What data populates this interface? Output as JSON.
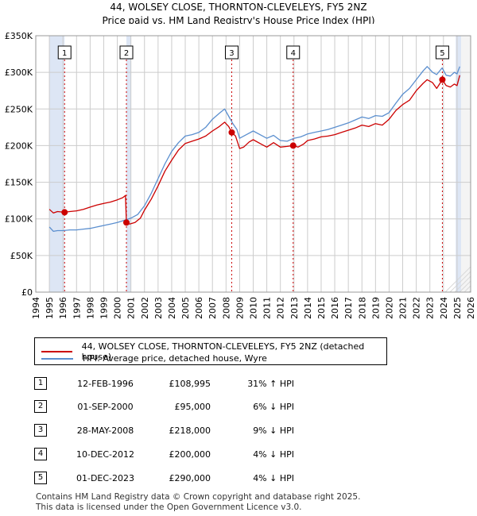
{
  "header": {
    "title": "44, WOLSEY CLOSE, THORNTON-CLEVELEYS, FY5 2NZ",
    "subtitle": "Price paid vs. HM Land Registry's House Price Index (HPI)"
  },
  "colors": {
    "property_line": "#cc0000",
    "hpi_line": "#5b8fcf",
    "shade": "#dde6f5",
    "grid": "#cccccc"
  },
  "chart_data": {
    "type": "line",
    "title": "44, WOLSEY CLOSE, THORNTON-CLEVELEYS, FY5 2NZ",
    "xlim": [
      1994,
      2026
    ],
    "ylim": [
      0,
      350000
    ],
    "x_ticks": [
      1994,
      1995,
      1996,
      1997,
      1998,
      1999,
      2000,
      2001,
      2002,
      2003,
      2004,
      2005,
      2006,
      2007,
      2008,
      2009,
      2010,
      2011,
      2012,
      2013,
      2014,
      2015,
      2016,
      2017,
      2018,
      2019,
      2020,
      2021,
      2022,
      2023,
      2024,
      2025,
      2026
    ],
    "y_ticks": [
      0,
      50000,
      100000,
      150000,
      200000,
      250000,
      300000,
      350000
    ],
    "y_tick_labels": [
      "£0",
      "£50K",
      "£100K",
      "£150K",
      "£200K",
      "£250K",
      "£300K",
      "£350K"
    ],
    "grid": true,
    "shaded_ranges": [
      [
        1995.0,
        1996.12
      ],
      [
        2000.67,
        2001.0
      ],
      [
        2024.9,
        2025.3
      ]
    ],
    "series": [
      {
        "name": "44, WOLSEY CLOSE, THORNTON-CLEVELEYS, FY5 2NZ (detached house)",
        "color": "#cc0000",
        "x": [
          1995.0,
          1995.3,
          1995.6,
          1996.12,
          1996.5,
          1997.0,
          1997.5,
          1998.0,
          1998.5,
          1999.0,
          1999.5,
          2000.0,
          2000.4,
          2000.6,
          2000.67,
          2000.9,
          2001.3,
          2001.7,
          2002.0,
          2002.5,
          2003.0,
          2003.5,
          2004.0,
          2004.5,
          2005.0,
          2005.5,
          2006.0,
          2006.5,
          2007.0,
          2007.5,
          2007.9,
          2008.2,
          2008.42,
          2008.7,
          2009.0,
          2009.3,
          2009.7,
          2010.0,
          2010.5,
          2011.0,
          2011.5,
          2012.0,
          2012.5,
          2012.94,
          2013.3,
          2013.7,
          2014.0,
          2014.5,
          2015.0,
          2015.5,
          2016.0,
          2016.5,
          2017.0,
          2017.5,
          2018.0,
          2018.5,
          2019.0,
          2019.5,
          2020.0,
          2020.5,
          2021.0,
          2021.5,
          2022.0,
          2022.5,
          2022.8,
          2023.2,
          2023.5,
          2023.92,
          2024.2,
          2024.5,
          2024.8,
          2025.0,
          2025.2
        ],
        "y": [
          113000,
          108000,
          110000,
          108995,
          110000,
          111000,
          113000,
          116000,
          119000,
          121000,
          123000,
          126000,
          129000,
          132000,
          95000,
          93000,
          95000,
          101000,
          112000,
          127000,
          145000,
          165000,
          180000,
          194000,
          203000,
          206000,
          209000,
          213000,
          220000,
          226000,
          232000,
          226000,
          218000,
          213000,
          196000,
          198000,
          205000,
          208000,
          203000,
          198000,
          204000,
          198000,
          199000,
          200000,
          198000,
          202000,
          207000,
          209000,
          212000,
          213000,
          215000,
          218000,
          221000,
          224000,
          228000,
          226000,
          230000,
          228000,
          236000,
          248000,
          256000,
          262000,
          275000,
          285000,
          290000,
          286000,
          278000,
          290000,
          282000,
          280000,
          284000,
          282000,
          296000
        ]
      },
      {
        "name": "HPI: Average price, detached house, Wyre",
        "color": "#5b8fcf",
        "x": [
          1995.0,
          1995.3,
          1995.6,
          1996.0,
          1996.5,
          1997.0,
          1997.5,
          1998.0,
          1998.5,
          1999.0,
          1999.5,
          2000.0,
          2000.5,
          2001.0,
          2001.5,
          2002.0,
          2002.5,
          2003.0,
          2003.5,
          2004.0,
          2004.5,
          2005.0,
          2005.5,
          2006.0,
          2006.5,
          2007.0,
          2007.5,
          2007.9,
          2008.2,
          2008.5,
          2008.8,
          2009.0,
          2009.5,
          2010.0,
          2010.5,
          2011.0,
          2011.5,
          2012.0,
          2012.5,
          2013.0,
          2013.5,
          2014.0,
          2014.5,
          2015.0,
          2015.5,
          2016.0,
          2016.5,
          2017.0,
          2017.5,
          2018.0,
          2018.5,
          2019.0,
          2019.5,
          2020.0,
          2020.5,
          2021.0,
          2021.5,
          2022.0,
          2022.5,
          2022.8,
          2023.2,
          2023.5,
          2023.9,
          2024.2,
          2024.5,
          2024.8,
          2025.0,
          2025.2
        ],
        "y": [
          89000,
          83000,
          84000,
          84000,
          85000,
          85000,
          86000,
          87000,
          89000,
          91000,
          93000,
          95000,
          98000,
          101000,
          106000,
          118000,
          135000,
          155000,
          175000,
          192000,
          204000,
          213000,
          215000,
          218000,
          225000,
          236000,
          244000,
          250000,
          240000,
          230000,
          222000,
          210000,
          215000,
          220000,
          215000,
          210000,
          214000,
          207000,
          206000,
          210000,
          212000,
          216000,
          218000,
          220000,
          222000,
          225000,
          228000,
          231000,
          235000,
          239000,
          237000,
          241000,
          240000,
          245000,
          258000,
          270000,
          278000,
          290000,
          302000,
          308000,
          300000,
          297000,
          306000,
          296000,
          295000,
          300000,
          298000,
          308000
        ]
      }
    ],
    "annotations": [
      {
        "label": "1",
        "x": 1996.12,
        "y": 108995
      },
      {
        "label": "2",
        "x": 2000.67,
        "y": 95000
      },
      {
        "label": "3",
        "x": 2008.42,
        "y": 218000
      },
      {
        "label": "4",
        "x": 2012.94,
        "y": 200000
      },
      {
        "label": "5",
        "x": 2023.92,
        "y": 290000
      }
    ]
  },
  "legend": {
    "property": "44, WOLSEY CLOSE, THORNTON-CLEVELEYS, FY5 2NZ (detached house)",
    "hpi": "HPI: Average price, detached house, Wyre"
  },
  "transactions": [
    {
      "num": "1",
      "date": "12-FEB-1996",
      "price": "£108,995",
      "diff": "31% ↑ HPI"
    },
    {
      "num": "2",
      "date": "01-SEP-2000",
      "price": "£95,000",
      "diff": "6% ↓ HPI"
    },
    {
      "num": "3",
      "date": "28-MAY-2008",
      "price": "£218,000",
      "diff": "9% ↓ HPI"
    },
    {
      "num": "4",
      "date": "10-DEC-2012",
      "price": "£200,000",
      "diff": "4% ↓ HPI"
    },
    {
      "num": "5",
      "date": "01-DEC-2023",
      "price": "£290,000",
      "diff": "4% ↓ HPI"
    }
  ],
  "footer": {
    "line1": "Contains HM Land Registry data © Crown copyright and database right 2025.",
    "line2": "This data is licensed under the Open Government Licence v3.0."
  }
}
